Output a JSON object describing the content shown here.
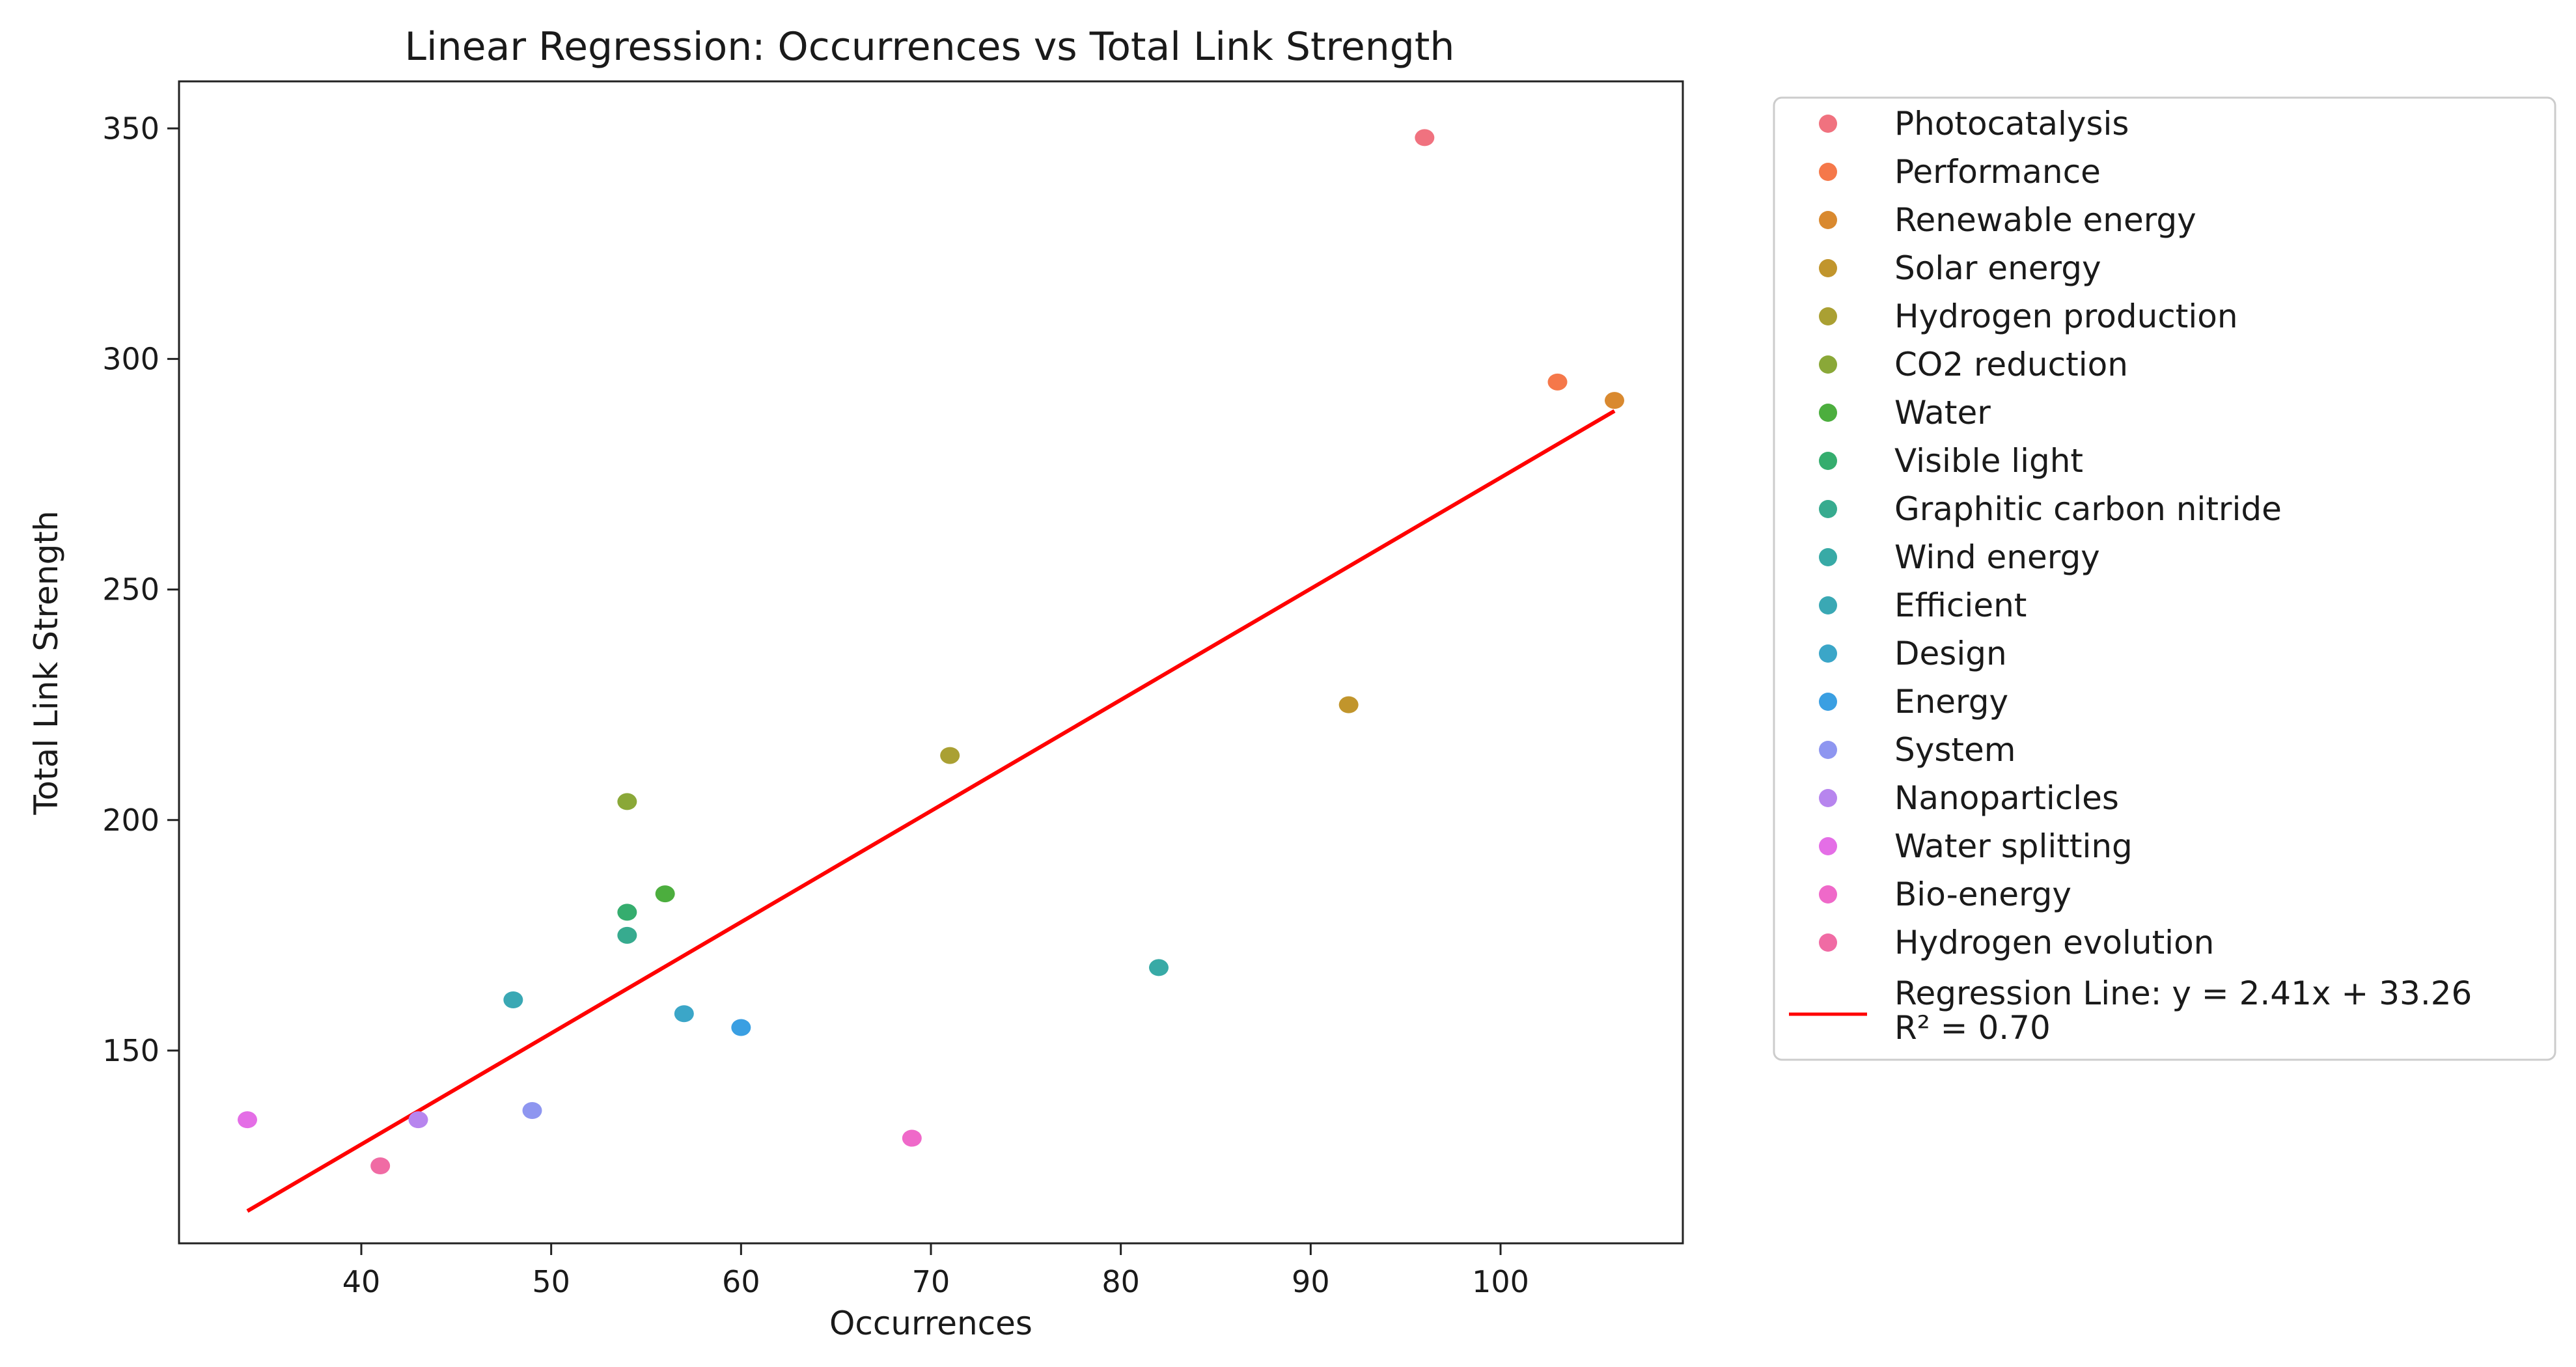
{
  "chart_data": {
    "type": "scatter",
    "title": "Linear Regression: Occurrences vs Total Link Strength",
    "xlabel": "Occurrences",
    "ylabel": "Total Link Strength",
    "xlim": [
      30.4,
      109.6
    ],
    "ylim": [
      108.2,
      360.2
    ],
    "xticks": [
      40,
      50,
      60,
      70,
      80,
      90,
      100
    ],
    "yticks": [
      150,
      200,
      250,
      300,
      350
    ],
    "grid": false,
    "legend_position": "outside-right",
    "series": [
      {
        "name": "Photocatalysis",
        "color": "#f0727f",
        "x": 96,
        "y": 348
      },
      {
        "name": "Performance",
        "color": "#f5784a",
        "x": 103,
        "y": 295
      },
      {
        "name": "Renewable energy",
        "color": "#d9892f",
        "x": 106,
        "y": 291
      },
      {
        "name": "Solar energy",
        "color": "#c1952c",
        "x": 92,
        "y": 225
      },
      {
        "name": "Hydrogen production",
        "color": "#aaa033",
        "x": 71,
        "y": 214
      },
      {
        "name": "CO2 reduction",
        "color": "#8aa838",
        "x": 54,
        "y": 204
      },
      {
        "name": "Water",
        "color": "#4cae3e",
        "x": 56,
        "y": 184
      },
      {
        "name": "Visible light",
        "color": "#35ad6e",
        "x": 54,
        "y": 180
      },
      {
        "name": "Graphitic carbon nitride",
        "color": "#37ab8f",
        "x": 54,
        "y": 175
      },
      {
        "name": "Wind energy",
        "color": "#38aaa6",
        "x": 82,
        "y": 168
      },
      {
        "name": "Efficient",
        "color": "#3aa8b4",
        "x": 48,
        "y": 161
      },
      {
        "name": "Design",
        "color": "#3ba6c8",
        "x": 57,
        "y": 158
      },
      {
        "name": "Energy",
        "color": "#3a9fe2",
        "x": 60,
        "y": 155
      },
      {
        "name": "System",
        "color": "#8e96f0",
        "x": 49,
        "y": 137
      },
      {
        "name": "Nanoparticles",
        "color": "#b785ee",
        "x": 43,
        "y": 135
      },
      {
        "name": "Water splitting",
        "color": "#e46ee6",
        "x": 34,
        "y": 135
      },
      {
        "name": "Bio-energy",
        "color": "#ef69c9",
        "x": 69,
        "y": 131
      },
      {
        "name": "Hydrogen evolution",
        "color": "#f06ba4",
        "x": 41,
        "y": 125
      }
    ],
    "regression": {
      "label_line1": "Regression Line: y = 2.41x + 33.26",
      "label_line2": "R² = 0.70",
      "slope": 2.41,
      "intercept": 33.26,
      "x_range": [
        34,
        106
      ],
      "color": "#ff0000"
    }
  }
}
